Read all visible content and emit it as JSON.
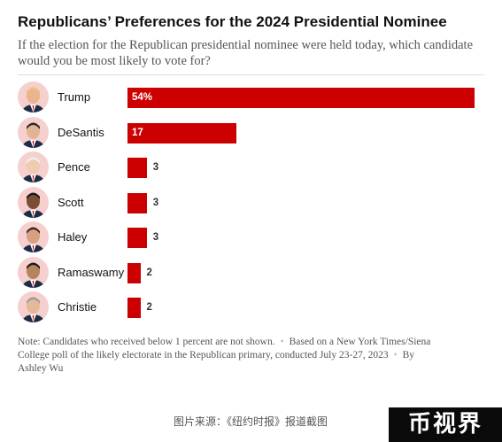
{
  "header": {
    "title": "Republicans’ Preferences for the 2024 Presidential Nominee",
    "subtitle": "If the election for the Republican presidential nominee were held today, which candidate would you be most likely to vote for?"
  },
  "chart_data": {
    "type": "bar",
    "orientation": "horizontal",
    "categories": [
      "Trump",
      "DeSantis",
      "Pence",
      "Scott",
      "Haley",
      "Ramaswamy",
      "Christie"
    ],
    "values": [
      54,
      17,
      3,
      3,
      3,
      2,
      2
    ],
    "value_labels": [
      "54%",
      "17",
      "3",
      "3",
      "3",
      "2",
      "2"
    ],
    "xlim": [
      0,
      54
    ],
    "grid": false,
    "legend": "none",
    "colors": {
      "bar": "#cc0000",
      "avatar_bg": "#f6cfcf"
    }
  },
  "note": {
    "part1": "Note: Candidates who received below 1 percent are not shown.",
    "part2": "Based on a New York Times/Siena College poll of the likely electorate in the Republican primary, conducted July 23-27, 2023",
    "part3": "By Ashley Wu"
  },
  "source": "图片来源：《纽约时报》报道截图",
  "watermark": "币视界"
}
